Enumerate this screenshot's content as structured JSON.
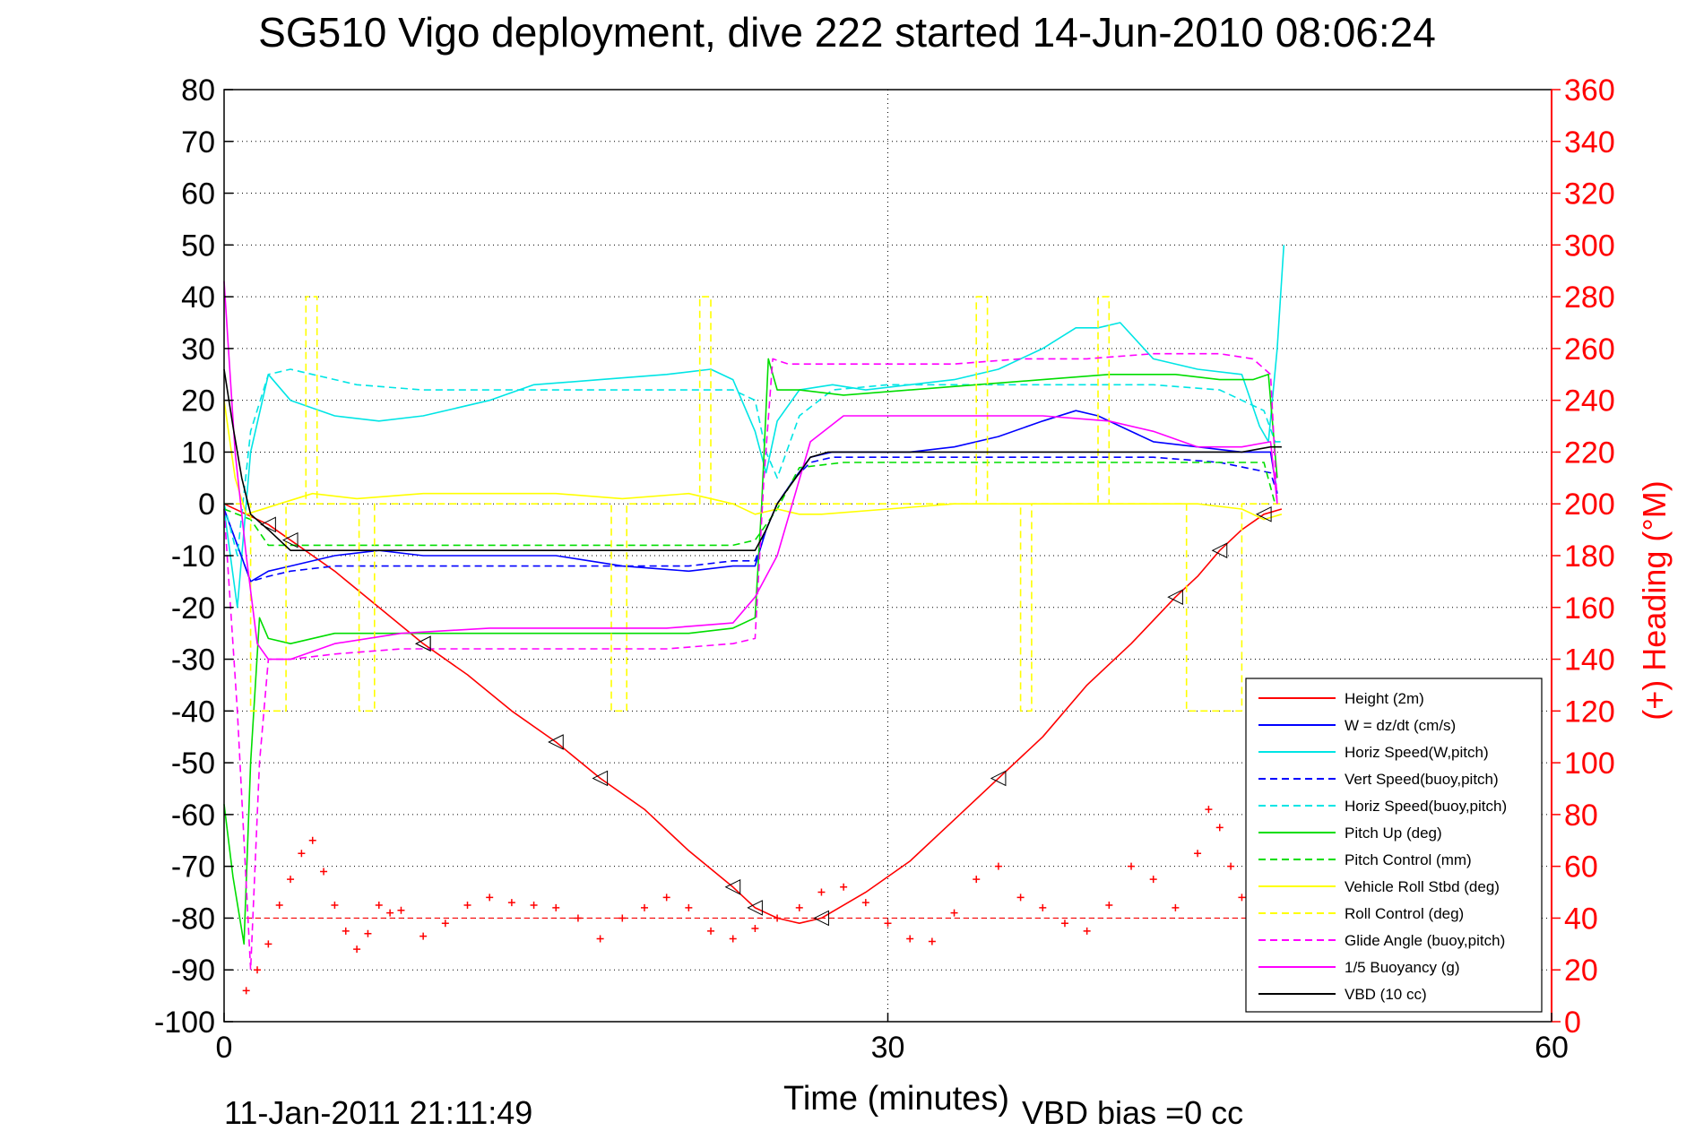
{
  "chart_data": {
    "type": "line",
    "title": "SG510 Vigo deployment, dive 222 started 14-Jun-2010 08:06:24",
    "xlabel": "Time (minutes)",
    "ylabel_right": "(+) Heading (°M)",
    "xlim": [
      0,
      60
    ],
    "ylim_left": [
      -100,
      80
    ],
    "ylim_right": [
      0,
      360
    ],
    "xticks": [
      "0",
      "30",
      "60"
    ],
    "yticks_left": [
      "80",
      "70",
      "60",
      "50",
      "40",
      "30",
      "20",
      "10",
      "0",
      "-10",
      "-20",
      "-30",
      "-40",
      "-50",
      "-60",
      "-70",
      "-80",
      "-90",
      "-100"
    ],
    "yticks_right": [
      "360",
      "340",
      "320",
      "300",
      "280",
      "260",
      "240",
      "220",
      "200",
      "180",
      "160",
      "140",
      "120",
      "100",
      "80",
      "60",
      "40",
      "20",
      "0"
    ],
    "grid": true,
    "legend_position": "bottom-right",
    "footer_left": "11-Jan-2011 21:11:49",
    "footer_right": "VBD bias =0 cc",
    "series": [
      {
        "name": "Height (2m)",
        "color": "#ff0000",
        "style": "solid",
        "x": [
          0,
          1,
          2,
          3,
          5,
          7,
          9,
          11,
          13,
          15,
          17,
          19,
          21,
          23,
          24,
          25,
          26,
          27,
          29,
          31,
          33,
          35,
          37,
          39,
          41,
          43,
          44,
          45,
          46,
          47,
          47.8
        ],
        "y": [
          0,
          -2,
          -4,
          -7,
          -13,
          -20,
          -27,
          -33,
          -40,
          -46,
          -53,
          -59,
          -67,
          -74,
          -78,
          -80,
          -81,
          -80,
          -75,
          -69,
          -61,
          -53,
          -45,
          -35,
          -27,
          -18,
          -14,
          -9,
          -5,
          -2,
          -1
        ]
      },
      {
        "name": "W = dz/dt (cm/s)",
        "color": "#0000ff",
        "style": "solid",
        "x": [
          0,
          0.6,
          1.2,
          2,
          3,
          5,
          7,
          9,
          12,
          15,
          18,
          21,
          23,
          24,
          24.5,
          25,
          25.8,
          26.5,
          27.5,
          29,
          31,
          33,
          35,
          37,
          38.5,
          39.5,
          40.5,
          42,
          44,
          46,
          47.3,
          47.6
        ],
        "y": [
          -1,
          -8,
          -15,
          -13,
          -12,
          -10,
          -9,
          -10,
          -10,
          -10,
          -12,
          -13,
          -12,
          -12,
          -5,
          0,
          5,
          9,
          10,
          10,
          10,
          11,
          13,
          16,
          18,
          17,
          15,
          12,
          11,
          10,
          10,
          2
        ]
      },
      {
        "name": "Horiz Speed(W,pitch)",
        "color": "#00e5e5",
        "style": "solid",
        "x": [
          0,
          0.6,
          1.2,
          2,
          3,
          5,
          7,
          9,
          12,
          14,
          17,
          20,
          22,
          23,
          24,
          24.5,
          25,
          26,
          27.5,
          29,
          31,
          33,
          35,
          37,
          38.5,
          39.5,
          40.5,
          42,
          44,
          46,
          46.8,
          47.2,
          47.6,
          47.9
        ],
        "y": [
          -1,
          -20,
          10,
          25,
          20,
          17,
          16,
          17,
          20,
          23,
          24,
          25,
          26,
          24,
          14,
          6,
          16,
          22,
          23,
          22,
          23,
          24,
          26,
          30,
          34,
          34,
          35,
          28,
          26,
          25,
          15,
          12,
          30,
          50
        ]
      },
      {
        "name": "Vert Speed(buoy,pitch)",
        "color": "#0000ff",
        "style": "dashed",
        "x": [
          0,
          0.6,
          1.2,
          2,
          3,
          5,
          7,
          9,
          12,
          15,
          18,
          21,
          23,
          24,
          24.5,
          25,
          25.8,
          26.5,
          27.5,
          30,
          33,
          36,
          39,
          42,
          45,
          47.3,
          47.6
        ],
        "y": [
          -1,
          -8,
          -15,
          -14,
          -13,
          -12,
          -12,
          -12,
          -12,
          -12,
          -12,
          -12,
          -11,
          -11,
          -5,
          0,
          5,
          8,
          9,
          9,
          9,
          9,
          9,
          9,
          8,
          6,
          2
        ]
      },
      {
        "name": "Horiz Speed(buoy,pitch)",
        "color": "#00e5e5",
        "style": "dashed",
        "x": [
          0,
          0.6,
          1.2,
          2,
          3,
          4,
          6,
          9,
          12,
          15,
          18,
          21,
          23,
          24,
          24.5,
          25,
          26,
          27.5,
          30,
          33,
          36,
          39,
          42,
          45,
          47,
          47.5,
          47.8
        ],
        "y": [
          0,
          -10,
          14,
          25,
          26,
          25,
          23,
          22,
          22,
          22,
          22,
          22,
          22,
          20,
          10,
          5,
          17,
          22,
          23,
          23,
          23,
          23,
          23,
          22,
          18,
          12,
          12
        ]
      },
      {
        "name": "Pitch Up (deg)",
        "color": "#00dd00",
        "style": "solid",
        "x": [
          0,
          0.4,
          0.9,
          1.2,
          1.6,
          2,
          3,
          5,
          7,
          10,
          14,
          18,
          21,
          23,
          24,
          24.3,
          24.6,
          25,
          26,
          28,
          31,
          34,
          37,
          40,
          43,
          45,
          46.5,
          47.2,
          47.6
        ],
        "y": [
          -58,
          -72,
          -85,
          -50,
          -22,
          -26,
          -27,
          -25,
          -25,
          -25,
          -25,
          -25,
          -25,
          -24,
          -22,
          0,
          28,
          22,
          22,
          21,
          22,
          23,
          24,
          25,
          25,
          24,
          24,
          25,
          5
        ]
      },
      {
        "name": "Pitch Control (mm)",
        "color": "#00dd00",
        "style": "dashed",
        "x": [
          0,
          0.6,
          1.2,
          2,
          4,
          8,
          12,
          16,
          20,
          23,
          24,
          25,
          26,
          28,
          32,
          36,
          40,
          44,
          47,
          47.5
        ],
        "y": [
          -1,
          -2,
          -3,
          -8,
          -8,
          -8,
          -8,
          -8,
          -8,
          -8,
          -7,
          -1,
          7,
          8,
          8,
          8,
          8,
          8,
          8,
          0
        ]
      },
      {
        "name": "Vehicle Roll Stbd (deg)",
        "color": "#ffff00",
        "style": "solid",
        "x": [
          0,
          0.5,
          1,
          2.5,
          4,
          6,
          9,
          12,
          15,
          18,
          21,
          23,
          24,
          25,
          26,
          27,
          30,
          33,
          36,
          40,
          44,
          46,
          47,
          47.8
        ],
        "y": [
          20,
          5,
          -2,
          0,
          2,
          1,
          2,
          2,
          2,
          1,
          2,
          0,
          -2,
          -1,
          -2,
          -2,
          -1,
          0,
          0,
          0,
          0,
          -1,
          -3,
          -2
        ]
      },
      {
        "name": "Roll Control (deg)",
        "color": "#ffff00",
        "style": "dashed",
        "x": [
          0,
          1.2,
          1.2,
          2.8,
          2.8,
          3.7,
          3.7,
          4.2,
          4.2,
          6.1,
          6.1,
          6.8,
          6.8,
          17.5,
          17.5,
          18.2,
          18.2,
          21.5,
          21.5,
          22,
          22,
          34,
          34,
          34.5,
          34.5,
          36,
          36,
          36.5,
          36.5,
          39.5,
          39.5,
          40,
          40,
          43.5,
          43.5,
          46,
          46,
          47.8
        ],
        "y": [
          0,
          0,
          -40,
          -40,
          0,
          0,
          40,
          40,
          0,
          0,
          -40,
          -40,
          0,
          0,
          -40,
          -40,
          0,
          0,
          40,
          40,
          0,
          0,
          40,
          40,
          0,
          0,
          -40,
          -40,
          0,
          0,
          40,
          40,
          0,
          0,
          -40,
          -40,
          0,
          0
        ]
      },
      {
        "name": "Glide Angle (buoy,pitch)",
        "color": "#ff00ff",
        "style": "dashed",
        "x": [
          0,
          0.6,
          1.2,
          1.6,
          2,
          3,
          5,
          8,
          12,
          16,
          20,
          23,
          24,
          24.4,
          24.8,
          25.5,
          27,
          30,
          33,
          36,
          39,
          42,
          45,
          46.5,
          47.3,
          47.6
        ],
        "y": [
          -1,
          -40,
          -90,
          -50,
          -30,
          -30,
          -29,
          -28,
          -28,
          -28,
          -28,
          -27,
          -26,
          5,
          28,
          27,
          27,
          27,
          27,
          28,
          28,
          29,
          29,
          28,
          25,
          0
        ]
      },
      {
        "name": "1/5 Buoyancy (g)",
        "color": "#ff00ff",
        "style": "solid",
        "x": [
          0,
          0.5,
          1,
          1.5,
          2,
          3,
          5,
          8,
          12,
          16,
          20,
          23,
          24,
          25,
          26.5,
          28,
          31,
          34,
          37,
          40,
          42,
          44,
          46,
          47.3,
          47.6
        ],
        "y": [
          43,
          10,
          -10,
          -27,
          -30,
          -30,
          -27,
          -25,
          -24,
          -24,
          -24,
          -23,
          -18,
          -10,
          12,
          17,
          17,
          17,
          17,
          16,
          14,
          11,
          11,
          12,
          0
        ]
      },
      {
        "name": "VBD (10 cc)",
        "color": "#000000",
        "style": "solid",
        "x": [
          0,
          0.4,
          0.8,
          1.2,
          2,
          3,
          8,
          16,
          23,
          24,
          24.5,
          25,
          25.5,
          26,
          26.5,
          27.3,
          30,
          34,
          40,
          46,
          47.3,
          47.8
        ],
        "y": [
          26,
          15,
          5,
          -2,
          -5,
          -9,
          -9,
          -9,
          -9,
          -9,
          -5,
          0,
          3,
          6,
          9,
          10,
          10,
          10,
          10,
          10,
          11,
          11
        ]
      }
    ],
    "heading_series": {
      "name": "(+) Heading (°M)",
      "color": "#ff0000",
      "marker": "+",
      "reference": 40,
      "x": [
        1,
        1.5,
        2,
        2.5,
        3,
        3.5,
        4,
        4.5,
        5,
        5.5,
        6,
        6.5,
        7,
        7.5,
        8,
        9,
        10,
        11,
        12,
        13,
        14,
        15,
        16,
        17,
        18,
        19,
        20,
        21,
        22,
        23,
        24,
        25,
        26,
        27,
        28,
        29,
        30,
        31,
        32,
        33,
        34,
        35,
        36,
        37,
        38,
        39,
        40,
        41,
        42,
        43,
        44,
        44.5,
        45,
        45.5,
        46,
        47
      ],
      "y": [
        12,
        20,
        30,
        45,
        55,
        65,
        70,
        58,
        45,
        35,
        28,
        34,
        45,
        42,
        43,
        33,
        38,
        45,
        48,
        46,
        45,
        44,
        40,
        32,
        40,
        44,
        48,
        44,
        35,
        32,
        36,
        40,
        44,
        50,
        52,
        46,
        38,
        32,
        31,
        42,
        55,
        60,
        48,
        44,
        38,
        35,
        45,
        60,
        55,
        44,
        65,
        82,
        75,
        60,
        48,
        38
      ]
    }
  }
}
